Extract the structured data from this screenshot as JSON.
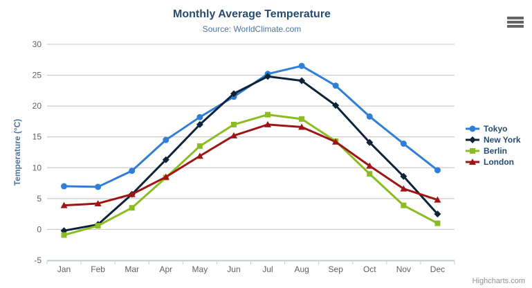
{
  "chart": {
    "title": "Monthly Average Temperature",
    "subtitle": "Source: WorldClimate.com",
    "credits": "Highcharts.com"
  },
  "chart_data": {
    "type": "line",
    "title": "Monthly Average Temperature",
    "subtitle": "Source: WorldClimate.com",
    "categories": [
      "Jan",
      "Feb",
      "Mar",
      "Apr",
      "May",
      "Jun",
      "Jul",
      "Aug",
      "Sep",
      "Oct",
      "Nov",
      "Dec"
    ],
    "xlabel": "",
    "ylabel": "Temperature (°C)",
    "ylim": [
      -5,
      30
    ],
    "ytick_step": 5,
    "grid": true,
    "legend_position": "right",
    "colors": {
      "grid_line": "#C0C0C0",
      "axis_line": "#C0D0E0",
      "tick_label": "#606060",
      "axis_title": "#4d759e",
      "legend_text": "#274b6d"
    },
    "series": [
      {
        "name": "Tokyo",
        "color": "#2f7ed8",
        "marker": "circle",
        "values": [
          7.0,
          6.9,
          9.5,
          14.5,
          18.2,
          21.5,
          25.2,
          26.5,
          23.3,
          18.3,
          13.9,
          9.6
        ]
      },
      {
        "name": "New York",
        "color": "#0d233a",
        "marker": "diamond",
        "values": [
          -0.2,
          0.8,
          5.7,
          11.3,
          17.0,
          22.0,
          24.8,
          24.1,
          20.1,
          14.1,
          8.6,
          2.5
        ]
      },
      {
        "name": "Berlin",
        "color": "#8bbc21",
        "marker": "square",
        "values": [
          -0.9,
          0.6,
          3.5,
          8.4,
          13.5,
          17.0,
          18.6,
          17.9,
          14.3,
          9.0,
          3.9,
          1.0
        ]
      },
      {
        "name": "London",
        "color": "#a01414",
        "marker": "triangle",
        "values": [
          3.9,
          4.2,
          5.7,
          8.5,
          11.9,
          15.2,
          17.0,
          16.6,
          14.2,
          10.3,
          6.6,
          4.8
        ]
      }
    ]
  }
}
